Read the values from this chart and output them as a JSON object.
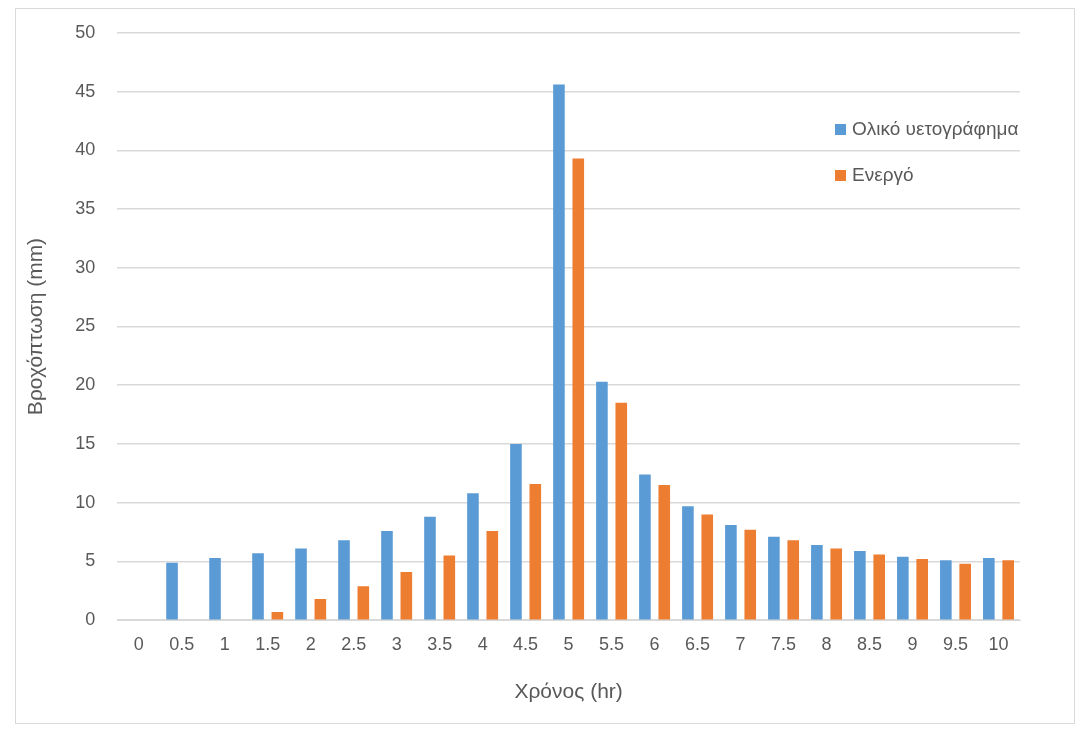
{
  "chart_data": {
    "type": "bar",
    "xlabel": "Χρόνος (hr)",
    "ylabel": "Βροχόπτωση (mm)",
    "categories": [
      "0",
      "0.5",
      "1",
      "1.5",
      "2",
      "2.5",
      "3",
      "3.5",
      "4",
      "4.5",
      "5",
      "5.5",
      "6",
      "6.5",
      "7",
      "7.5",
      "8",
      "8.5",
      "9",
      "9.5",
      "10"
    ],
    "series": [
      {
        "name": "Ολικό υετογράφημα",
        "color": "#5b9bd5",
        "values": [
          0,
          4.9,
          5.3,
          5.7,
          6.1,
          6.8,
          7.6,
          8.8,
          10.8,
          15.0,
          45.6,
          20.3,
          12.4,
          9.7,
          8.1,
          7.1,
          6.4,
          5.9,
          5.4,
          5.1,
          5.3
        ]
      },
      {
        "name": "Ενεργό",
        "color": "#ed7d31",
        "values": [
          0,
          0,
          0,
          0.7,
          1.8,
          2.9,
          4.1,
          5.5,
          7.6,
          11.6,
          39.3,
          18.5,
          11.5,
          9.0,
          7.7,
          6.8,
          6.1,
          5.6,
          5.2,
          4.8,
          5.1
        ]
      }
    ],
    "ylim": [
      0,
      50
    ],
    "yticks": [
      0,
      5,
      10,
      15,
      20,
      25,
      30,
      35,
      40,
      45,
      50
    ],
    "grid": "y",
    "legend": "top right"
  }
}
